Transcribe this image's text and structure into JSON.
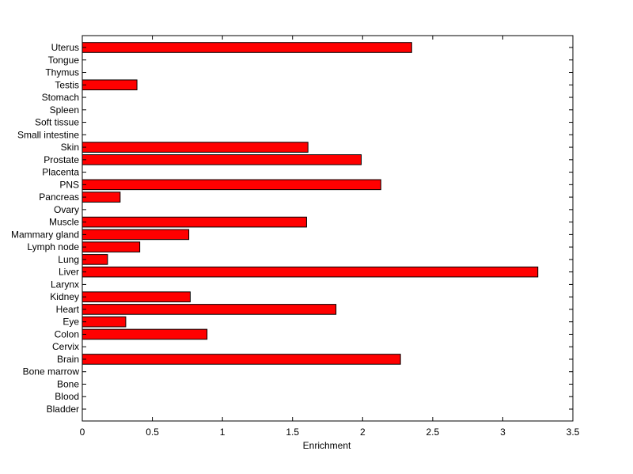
{
  "chart_data": {
    "type": "bar",
    "orientation": "horizontal",
    "xlabel": "Enrichment",
    "xlim": [
      0,
      3.5
    ],
    "x_ticks": [
      0,
      0.5,
      1,
      1.5,
      2,
      2.5,
      3,
      3.5
    ],
    "x_tick_labels": [
      "0",
      "0.5",
      "1",
      "1.5",
      "2",
      "2.5",
      "3",
      "3.5"
    ],
    "grid": false,
    "bar_color": "#ff0000",
    "bar_edge_color": "#000000",
    "categories": [
      "Uterus",
      "Tongue",
      "Thymus",
      "Testis",
      "Stomach",
      "Spleen",
      "Soft tissue",
      "Small intestine",
      "Skin",
      "Prostate",
      "Placenta",
      "PNS",
      "Pancreas",
      "Ovary",
      "Muscle",
      "Mammary gland",
      "Lymph node",
      "Lung",
      "Liver",
      "Larynx",
      "Kidney",
      "Heart",
      "Eye",
      "Colon",
      "Cervix",
      "Brain",
      "Bone marrow",
      "Bone",
      "Blood",
      "Bladder"
    ],
    "values": [
      2.35,
      0,
      0,
      0.39,
      0,
      0,
      0,
      0,
      1.61,
      1.99,
      0,
      2.13,
      0.27,
      0,
      1.6,
      0.76,
      0.41,
      0.18,
      3.25,
      0,
      0.77,
      1.81,
      0.31,
      0.89,
      0,
      2.27,
      0,
      0,
      0,
      0
    ]
  }
}
